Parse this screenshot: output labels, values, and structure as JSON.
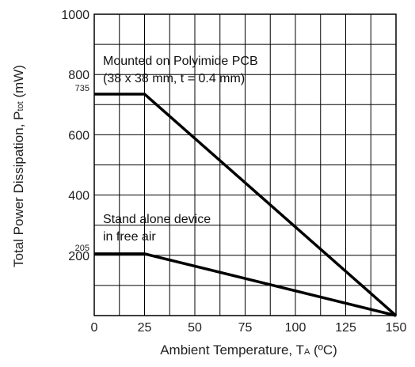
{
  "chart_data": {
    "type": "line",
    "title": "",
    "xlabel": {
      "main": "Ambient Temperature, T",
      "sub": "A",
      "suffix": " (ºC)"
    },
    "ylabel": {
      "main": "Total Power Dissipation, P",
      "sub": "tot",
      "suffix": " (mW)"
    },
    "xlim": [
      0,
      150
    ],
    "ylim": [
      0,
      1000
    ],
    "x_ticks": [
      0,
      25,
      50,
      75,
      100,
      125,
      150
    ],
    "y_ticks": [
      200,
      400,
      600,
      800,
      1000
    ],
    "extra_y_labels": [
      735,
      205
    ],
    "grid": true,
    "series": [
      {
        "x": [
          0,
          25,
          150
        ],
        "y": [
          735,
          735,
          0
        ]
      },
      {
        "x": [
          0,
          25,
          150
        ],
        "y": [
          205,
          205,
          0
        ]
      }
    ],
    "annotations": [
      {
        "lines": [
          "Mounted on Polyimide PCB",
          "(38 x 38 mm, t = 0.4 mm)"
        ]
      },
      {
        "lines": [
          "Stand alone device",
          "in free air"
        ]
      }
    ]
  }
}
